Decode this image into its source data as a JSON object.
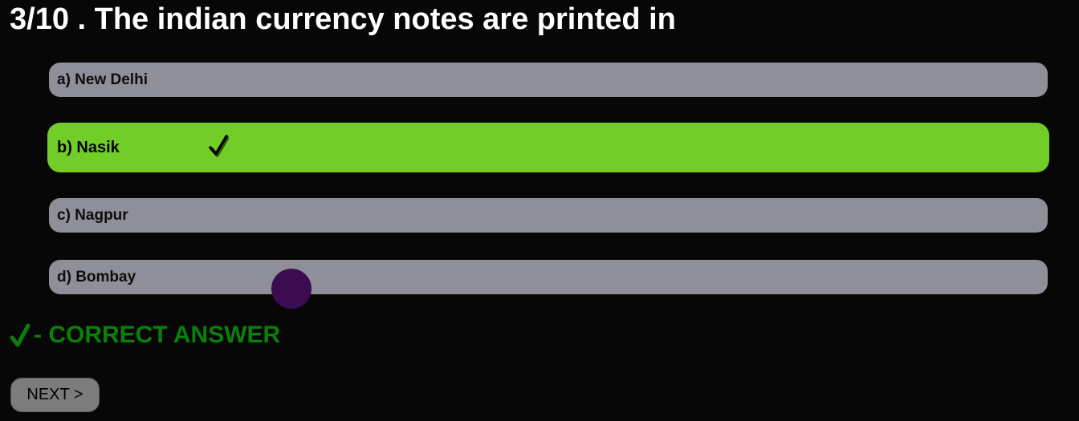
{
  "question": {
    "text": "3/10 . The indian currency notes are printed in"
  },
  "options": [
    {
      "label": "a) New Delhi",
      "selected": false,
      "correct": false
    },
    {
      "label": "b) Nasik",
      "selected": false,
      "correct": true
    },
    {
      "label": "c) Nagpur",
      "selected": false,
      "correct": false
    },
    {
      "label": "d) Bombay",
      "selected": false,
      "correct": false
    }
  ],
  "legend": {
    "icon": "check-icon",
    "text": "- CORRECT ANSWER"
  },
  "next_button": {
    "label": "NEXT >"
  },
  "colors": {
    "background": "#070707",
    "option_default": "#8f8f99",
    "option_correct": "#72cd29",
    "legend_text": "#0b7f0b",
    "button": "#7c7c7c",
    "cursor_dot": "#3c0c53"
  }
}
